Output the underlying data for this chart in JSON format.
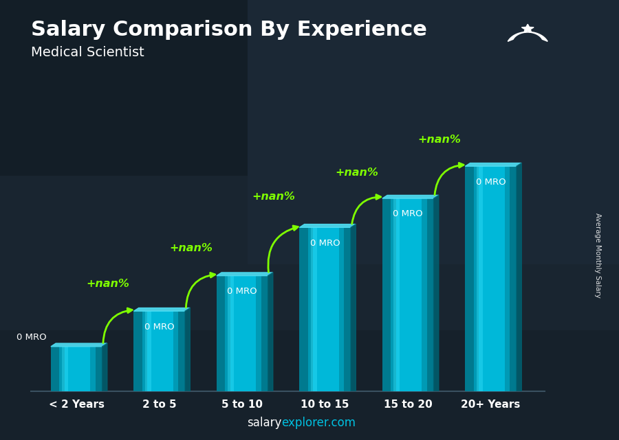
{
  "title": "Salary Comparison By Experience",
  "subtitle": "Medical Scientist",
  "categories": [
    "< 2 Years",
    "2 to 5",
    "5 to 10",
    "10 to 15",
    "15 to 20",
    "20+ Years"
  ],
  "value_labels": [
    "0 MRO",
    "0 MRO",
    "0 MRO",
    "0 MRO",
    "0 MRO",
    "0 MRO"
  ],
  "pct_labels": [
    "+nan%",
    "+nan%",
    "+nan%",
    "+nan%",
    "+nan%"
  ],
  "pct_color": "#7fff00",
  "bar_color_main": "#00b8d9",
  "bar_color_light": "#29d4ef",
  "bar_color_dark": "#007a8f",
  "bar_color_top": "#40e0f0",
  "bg_color_top": "#1a2b38",
  "bg_color_bottom": "#1a2b38",
  "footer_salary_color": "#ffffff",
  "footer_explorer_color": "#00c0e0",
  "ylabel": "Average Monthly Salary",
  "flag_bg": "#5cb800",
  "bar_heights": [
    1.4,
    2.5,
    3.6,
    5.1,
    6.0,
    7.0
  ],
  "bar_width": 0.62,
  "ylim_max": 8.2,
  "title_fontsize": 22,
  "subtitle_fontsize": 14
}
